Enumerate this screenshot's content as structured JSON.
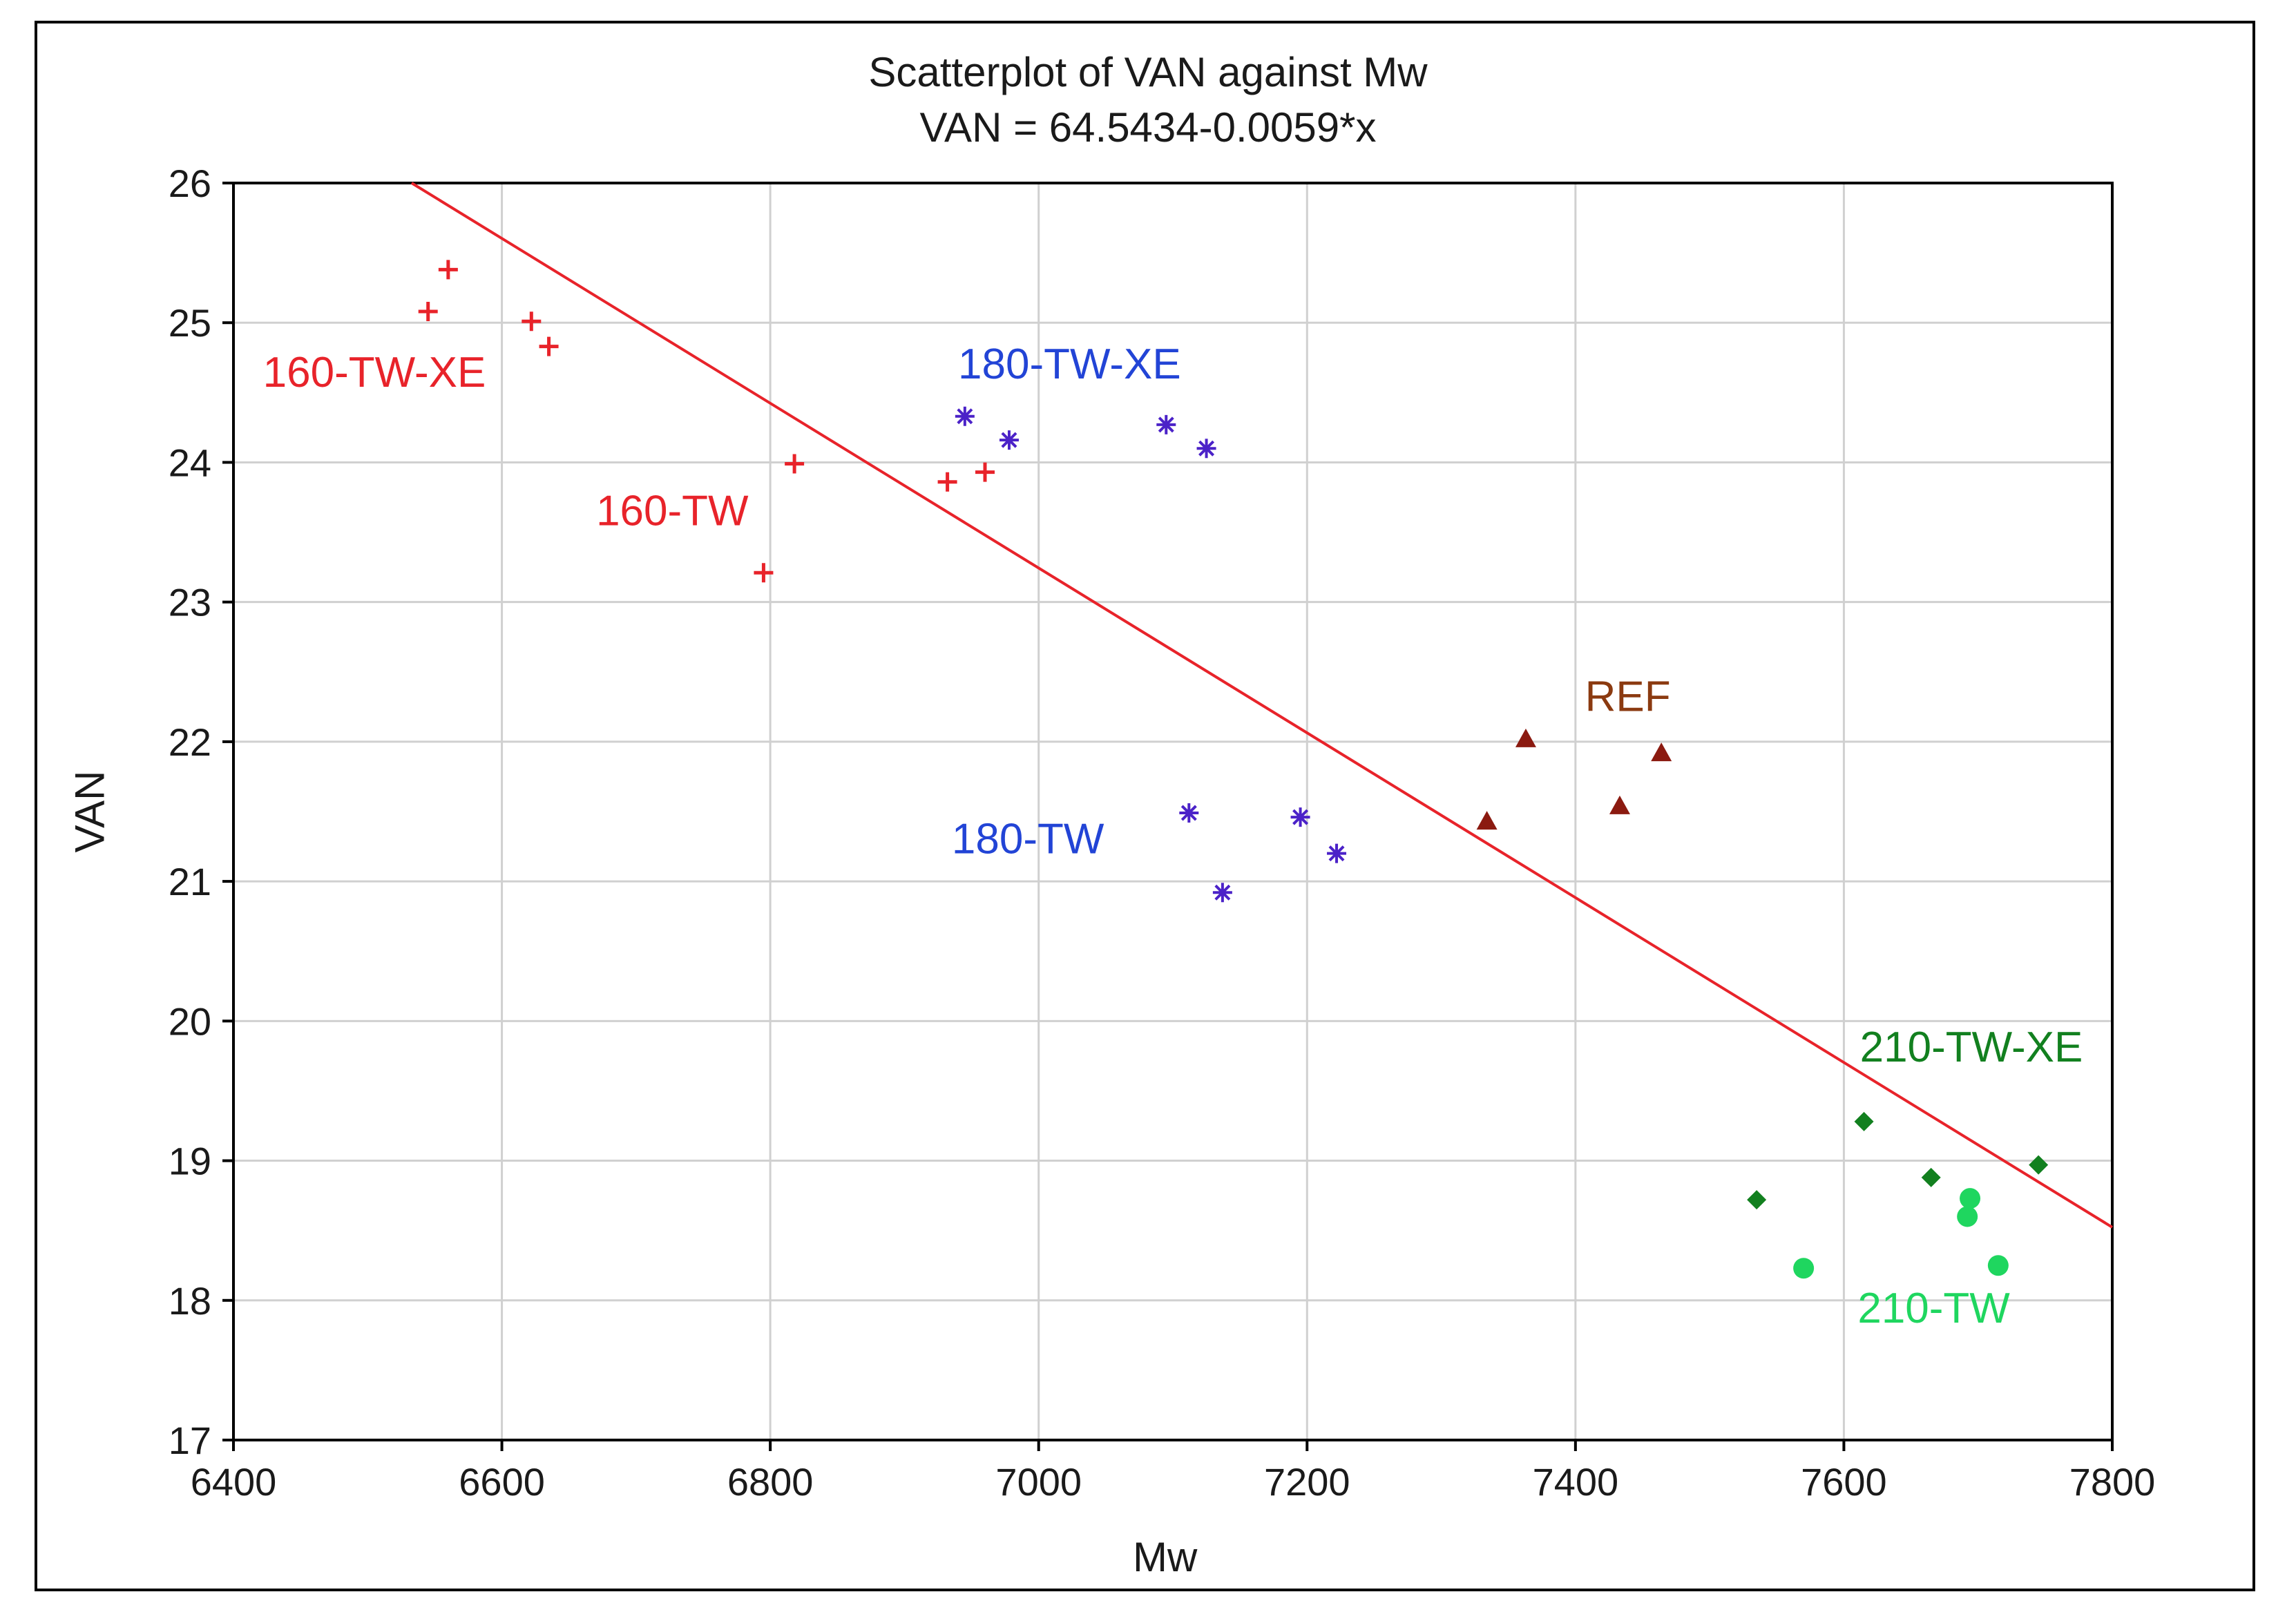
{
  "chart_data": {
    "type": "scatter",
    "title": "Scatterplot of VAN against Mw",
    "subtitle": "VAN = 64.5434-0.0059*x",
    "xlabel": "Mw",
    "ylabel": "VAN",
    "xlim": [
      6400,
      7800
    ],
    "ylim": [
      17,
      26
    ],
    "xticks": [
      6400,
      6600,
      6800,
      7000,
      7200,
      7400,
      7600,
      7800
    ],
    "yticks": [
      17,
      18,
      19,
      20,
      21,
      22,
      23,
      24,
      25,
      26
    ],
    "grid": true,
    "regression": {
      "intercept": 64.5434,
      "slope": -0.0059,
      "color": "#e8232a"
    },
    "series": [
      {
        "name": "160-TW-XE",
        "marker": "plus",
        "color": "#e8232a",
        "x": [
          6545,
          6560,
          6622,
          6635
        ],
        "y": [
          25.08,
          25.38,
          25.01,
          24.83
        ]
      },
      {
        "name": "160-TW",
        "marker": "plus",
        "color": "#e8232a",
        "x": [
          6795,
          6818,
          6932,
          6960
        ],
        "y": [
          23.21,
          23.99,
          23.86,
          23.93
        ]
      },
      {
        "name": "180-TW-XE",
        "marker": "asterisk",
        "color": "#4b22c8",
        "x": [
          6945,
          6978,
          7095,
          7125
        ],
        "y": [
          24.33,
          24.16,
          24.27,
          24.1
        ]
      },
      {
        "name": "180-TW",
        "marker": "asterisk",
        "color": "#4b22c8",
        "x": [
          7112,
          7137,
          7195,
          7222
        ],
        "y": [
          21.49,
          20.92,
          21.46,
          21.2
        ]
      },
      {
        "name": "REF",
        "marker": "triangle",
        "color": "#8b1a10",
        "x": [
          7334,
          7363,
          7433,
          7464
        ],
        "y": [
          21.43,
          22.02,
          21.54,
          21.92
        ]
      },
      {
        "name": "210-TW-XE",
        "marker": "diamond",
        "color": "#12801f",
        "x": [
          7535,
          7615,
          7665,
          7745
        ],
        "y": [
          18.72,
          19.28,
          18.88,
          18.97
        ]
      },
      {
        "name": "210-TW",
        "marker": "circle",
        "color": "#1fd65f",
        "x": [
          7570,
          7692,
          7694,
          7715
        ],
        "y": [
          18.23,
          18.6,
          18.73,
          18.25
        ]
      }
    ],
    "annotations": [
      {
        "text": "160-TW-XE",
        "x": 6505,
        "y": 24.54,
        "color": "#e8232a"
      },
      {
        "text": "160-TW",
        "x": 6727,
        "y": 23.55,
        "color": "#e8232a"
      },
      {
        "text": "180-TW-XE",
        "x": 7023,
        "y": 24.6,
        "color": "#2244d6"
      },
      {
        "text": "180-TW",
        "x": 6992,
        "y": 21.2,
        "color": "#2244d6"
      },
      {
        "text": "REF",
        "x": 7439,
        "y": 22.22,
        "color": "#8b3a10"
      },
      {
        "text": "210-TW-XE",
        "x": 7695,
        "y": 19.71,
        "color": "#12801f"
      },
      {
        "text": "210-TW",
        "x": 7667,
        "y": 17.84,
        "color": "#1fd65f"
      }
    ]
  }
}
